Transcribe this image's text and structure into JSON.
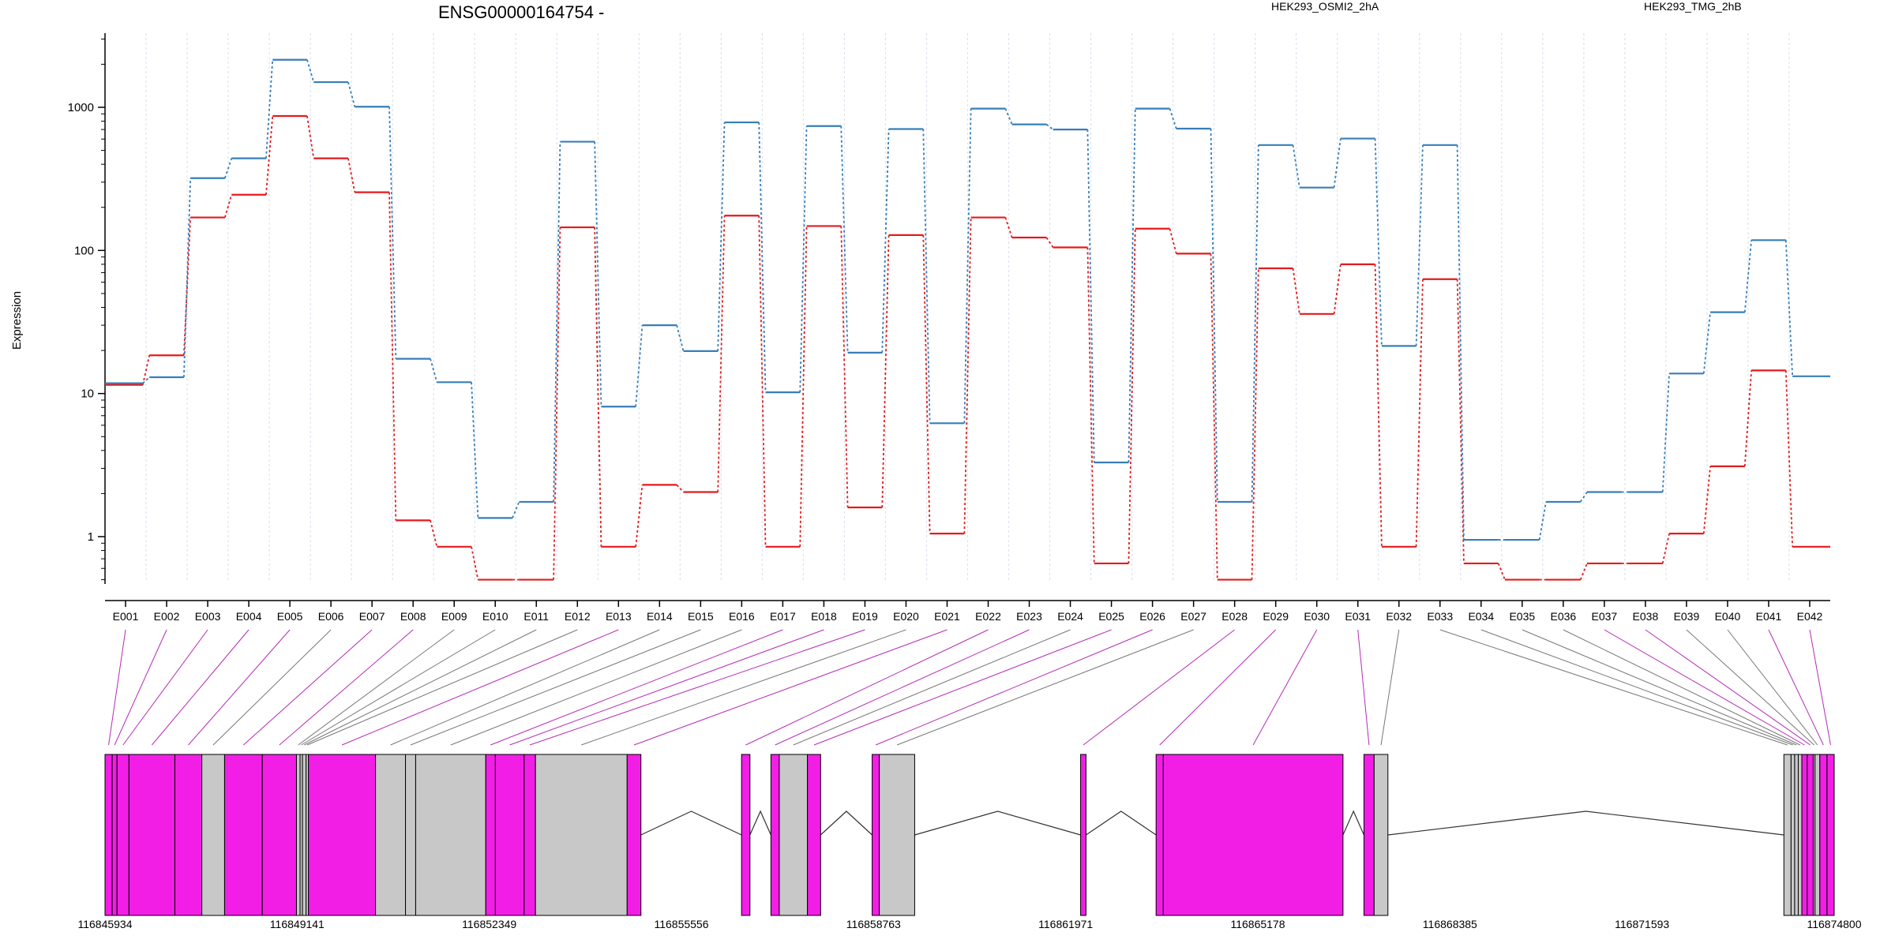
{
  "title": "ENSG00000164754 -",
  "colors": {
    "series_a": "#e41a1c",
    "series_b": "#377eb8",
    "exon_highlight": "#f21ee6",
    "exon_plain": "#c8c8c8",
    "connector_highlight": "#b52bb5",
    "connector_plain": "#777777",
    "gridline": "#dde3f0",
    "axis": "#000000"
  },
  "chart_data": [
    {
      "type": "line",
      "title": "ENSG00000164754 -",
      "xlabel": "",
      "ylabel": "Expression",
      "y_scale": "log",
      "ylim": [
        0.5,
        3000
      ],
      "y_ticks": [
        1,
        10,
        100,
        1000
      ],
      "y_tick_labels": [
        "1",
        "10",
        "100",
        "1000"
      ],
      "grid": "vertical dotted lines at each exon bin",
      "legend_placement": "top, above plot",
      "categories": [
        "E001",
        "E002",
        "E003",
        "E004",
        "E005",
        "E006",
        "E007",
        "E008",
        "E009",
        "E010",
        "E011",
        "E012",
        "E013",
        "E014",
        "E015",
        "E016",
        "E017",
        "E018",
        "E019",
        "E020",
        "E021",
        "E022",
        "E023",
        "E024",
        "E025",
        "E026",
        "E027",
        "E028",
        "E029",
        "E030",
        "E031",
        "E032",
        "E033",
        "E034",
        "E035",
        "E036",
        "E037",
        "E038",
        "E039",
        "E040",
        "E041",
        "E042"
      ],
      "series": [
        {
          "name": "HEK293_OSMI2_2hA",
          "color": "#e41a1c",
          "values": [
            11.5,
            18.5,
            170,
            245,
            870,
            440,
            255,
            1.3,
            0.85,
            0.5,
            0.5,
            145,
            0.85,
            2.3,
            2.05,
            175,
            0.85,
            148,
            1.6,
            128,
            1.05,
            170,
            123,
            105,
            0.65,
            142,
            95,
            0.5,
            75,
            36,
            80,
            0.85,
            63,
            0.65,
            0.5,
            0.5,
            0.65,
            0.65,
            1.05,
            3.1,
            14.5,
            0.85
          ]
        },
        {
          "name": "HEK293_TMG_2hB",
          "color": "#377eb8",
          "values": [
            11.8,
            13,
            320,
            440,
            2150,
            1500,
            1010,
            17.5,
            12,
            1.35,
            1.75,
            575,
            8.1,
            30,
            19.8,
            785,
            10.2,
            740,
            19.3,
            705,
            6.2,
            980,
            760,
            700,
            3.3,
            980,
            710,
            1.75,
            545,
            275,
            605,
            21.5,
            545,
            0.95,
            0.95,
            1.75,
            2.05,
            2.05,
            13.8,
            37,
            118,
            13.2
          ]
        }
      ]
    },
    {
      "type": "gene_model",
      "title": "",
      "xlabel": "",
      "ylabel": "",
      "xlim": [
        116845934,
        116874800
      ],
      "x_tick_labels": [
        "116845934",
        "116849141",
        "116852349",
        "116855556",
        "116858763",
        "116861971",
        "116865178",
        "116868385",
        "116871593",
        "116874800"
      ],
      "exons": [
        {
          "start": 116845934,
          "end": 116846054,
          "highlight": true
        },
        {
          "start": 116846054,
          "end": 116846134,
          "highlight": true
        },
        {
          "start": 116846134,
          "end": 116846334,
          "highlight": true
        },
        {
          "start": 116846334,
          "end": 116847100,
          "highlight": true
        },
        {
          "start": 116847100,
          "end": 116847550,
          "highlight": true
        },
        {
          "start": 116847550,
          "end": 116847930,
          "highlight": false
        },
        {
          "start": 116847930,
          "end": 116848560,
          "highlight": true
        },
        {
          "start": 116848560,
          "end": 116849130,
          "highlight": true
        },
        {
          "start": 116849130,
          "end": 116849190,
          "highlight": false
        },
        {
          "start": 116849190,
          "end": 116849230,
          "highlight": false
        },
        {
          "start": 116849230,
          "end": 116849290,
          "highlight": false
        },
        {
          "start": 116849290,
          "end": 116849330,
          "highlight": false
        },
        {
          "start": 116849330,
          "end": 116850450,
          "highlight": true
        },
        {
          "start": 116850450,
          "end": 116850950,
          "highlight": false
        },
        {
          "start": 116850950,
          "end": 116851120,
          "highlight": false
        },
        {
          "start": 116851120,
          "end": 116852290,
          "highlight": false
        },
        {
          "start": 116852290,
          "end": 116852450,
          "highlight": true
        },
        {
          "start": 116852450,
          "end": 116852930,
          "highlight": true
        },
        {
          "start": 116852930,
          "end": 116853120,
          "highlight": true
        },
        {
          "start": 116853120,
          "end": 116854650,
          "highlight": false
        },
        {
          "start": 116854650,
          "end": 116854880,
          "highlight": true
        },
        {
          "start": 116856560,
          "end": 116856700,
          "highlight": true
        },
        {
          "start": 116857050,
          "end": 116857190,
          "highlight": true
        },
        {
          "start": 116857190,
          "end": 116857660,
          "highlight": false
        },
        {
          "start": 116857660,
          "end": 116857880,
          "highlight": true
        },
        {
          "start": 116858740,
          "end": 116858860,
          "highlight": true
        },
        {
          "start": 116858860,
          "end": 116859450,
          "highlight": false
        },
        {
          "start": 116862220,
          "end": 116862310,
          "highlight": true
        },
        {
          "start": 116863480,
          "end": 116863600,
          "highlight": true
        },
        {
          "start": 116863600,
          "end": 116866600,
          "highlight": true
        },
        {
          "start": 116866950,
          "end": 116867120,
          "highlight": true
        },
        {
          "start": 116867120,
          "end": 116867350,
          "highlight": false
        },
        {
          "start": 116873960,
          "end": 116874080,
          "highlight": false
        },
        {
          "start": 116874080,
          "end": 116874140,
          "highlight": false
        },
        {
          "start": 116874140,
          "end": 116874200,
          "highlight": false
        },
        {
          "start": 116874200,
          "end": 116874260,
          "highlight": false
        },
        {
          "start": 116874260,
          "end": 116874350,
          "highlight": true
        },
        {
          "start": 116874350,
          "end": 116874450,
          "highlight": true
        },
        {
          "start": 116874450,
          "end": 116874480,
          "highlight": false
        },
        {
          "start": 116874480,
          "end": 116874560,
          "highlight": false
        },
        {
          "start": 116874560,
          "end": 116874680,
          "highlight": true
        },
        {
          "start": 116874680,
          "end": 116874800,
          "highlight": true
        }
      ],
      "introns": [
        {
          "start": 116854880,
          "end": 116856560
        },
        {
          "start": 116856700,
          "end": 116857050
        },
        {
          "start": 116857880,
          "end": 116858740
        },
        {
          "start": 116859450,
          "end": 116862220
        },
        {
          "start": 116862310,
          "end": 116863480
        },
        {
          "start": 116866600,
          "end": 116866950
        },
        {
          "start": 116867350,
          "end": 116873960
        },
        {
          "start": 116874450,
          "end": 116874480
        },
        {
          "start": 116874560,
          "end": 116874560
        }
      ]
    }
  ]
}
